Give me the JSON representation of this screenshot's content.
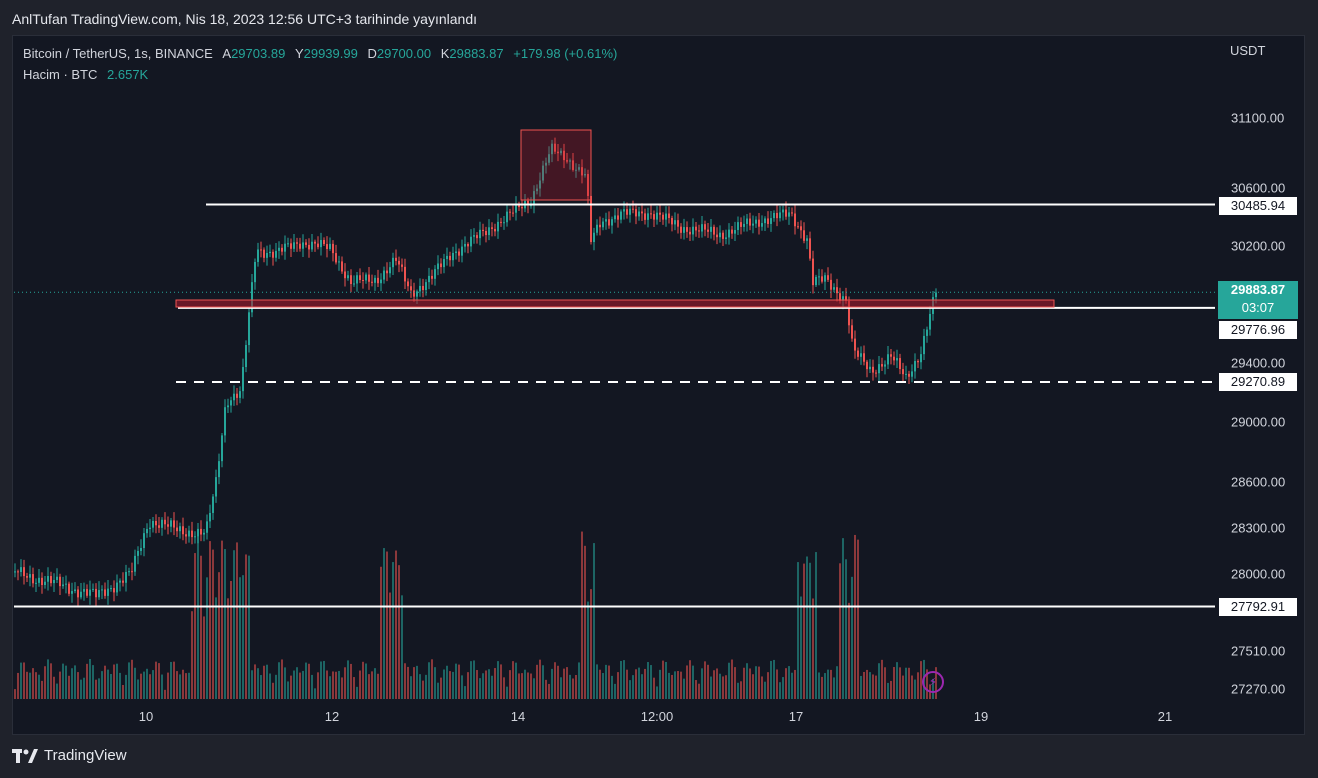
{
  "header": {
    "published_line": "AnlTufan TradingView.com, Nis 18, 2023 12:56 UTC+3 tarihinde yayınlandı"
  },
  "legend": {
    "symbol": "Bitcoin / TetherUS, 1s, BINANCE",
    "open_label": "A",
    "open": "29703.89",
    "high_label": "Y",
    "high": "29939.99",
    "low_label": "D",
    "low": "29700.00",
    "close_label": "K",
    "close": "29883.87",
    "change": "+179.98 (+0.61%)",
    "volume_label": "Hacim · BTC",
    "volume": "2.657K"
  },
  "price_axis": {
    "unit": "USDT",
    "ticks": [
      "31100.00",
      "30600.00",
      "30200.00",
      "29400.00",
      "29000.00",
      "28600.00",
      "28300.00",
      "28000.00",
      "27510.00",
      "27270.00"
    ]
  },
  "time_axis": {
    "ticks": [
      "10",
      "12",
      "14",
      "12:00",
      "17",
      "19",
      "21"
    ]
  },
  "price_labels": {
    "resistance": "30485.94",
    "current": "29883.87",
    "countdown": "03:07",
    "support_zone": "29776.96",
    "dashed_support": "29270.89",
    "bottom_support": "27792.91"
  },
  "colors": {
    "up": "#26a69a",
    "down": "#ef5350",
    "background": "#131722",
    "zone": "#b2182b"
  },
  "footer": {
    "brand": "TradingView"
  },
  "icons": {
    "logo": "tradingview-logo-icon",
    "bolt": "lightning-icon"
  }
}
